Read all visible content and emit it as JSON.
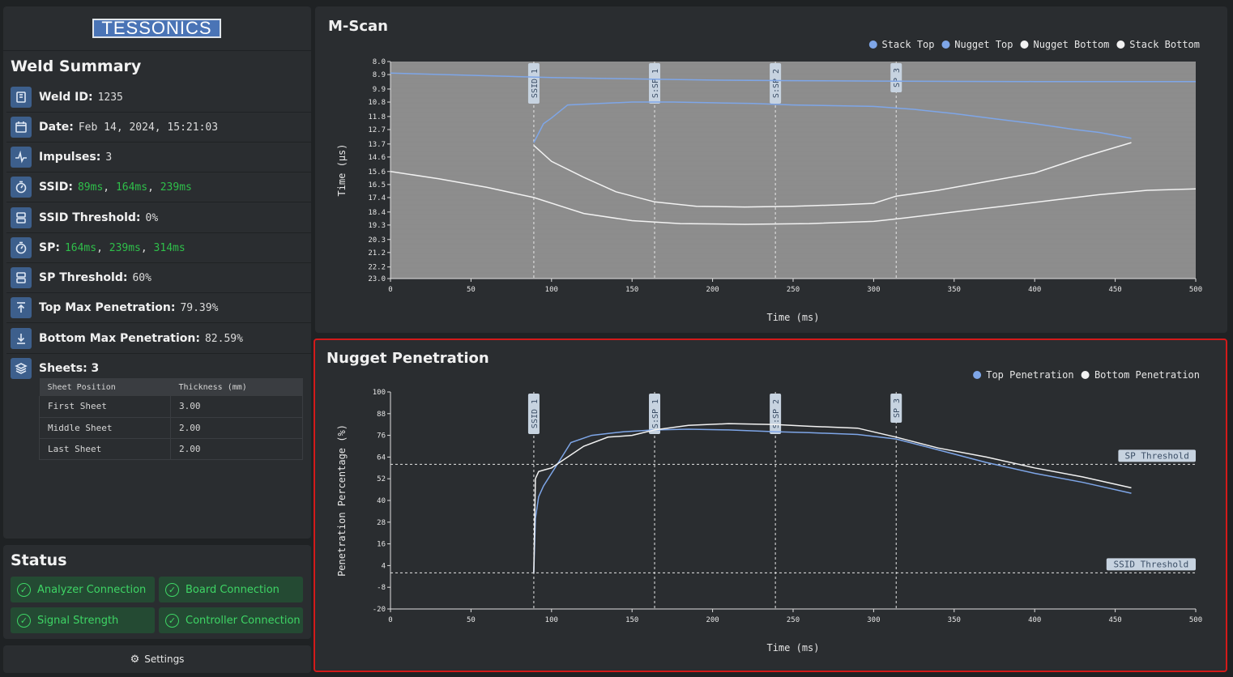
{
  "app": {
    "logo_text": "TESSONICS"
  },
  "sidebar": {
    "title": "Weld Summary",
    "rows": [
      {
        "icon": "id-card-icon",
        "label": "Weld ID:",
        "value": "1235"
      },
      {
        "icon": "calendar-icon",
        "label": "Date:",
        "value": "Feb 14, 2024, 15:21:03"
      },
      {
        "icon": "pulse-icon",
        "label": "Impulses:",
        "value": "3"
      },
      {
        "icon": "timer-icon",
        "label": "SSID:",
        "parts": [
          "89ms",
          "164ms",
          "239ms"
        ]
      },
      {
        "icon": "threshold-icon",
        "label": "SSID Threshold:",
        "value": "0%"
      },
      {
        "icon": "timer-icon",
        "label": "SP:",
        "parts": [
          "164ms",
          "239ms",
          "314ms"
        ]
      },
      {
        "icon": "threshold-icon",
        "label": "SP Threshold:",
        "value": "60%"
      },
      {
        "icon": "arrow-up-icon",
        "label": "Top Max Penetration:",
        "value": "79.39%"
      },
      {
        "icon": "arrow-down-icon",
        "label": "Bottom Max Penetration:",
        "value": "82.59%"
      },
      {
        "icon": "layers-icon",
        "label": "Sheets: 3",
        "value": ""
      }
    ],
    "sheets_table": {
      "headers": [
        "Sheet Position",
        "Thickness (mm)"
      ],
      "rows": [
        [
          "First Sheet",
          "3.00"
        ],
        [
          "Middle Sheet",
          "2.00"
        ],
        [
          "Last Sheet",
          "2.00"
        ]
      ]
    }
  },
  "status": {
    "title": "Status",
    "items": [
      "Analyzer Connection",
      "Board Connection",
      "Signal Strength",
      "Controller Connection"
    ],
    "settings_label": "Settings"
  },
  "chart_data": [
    {
      "type": "line",
      "title": "M-Scan",
      "xlabel": "Time (ms)",
      "ylabel": "Time (µs)",
      "xlim": [
        0,
        500
      ],
      "ylim": [
        8.0,
        23.0
      ],
      "y_inverted": true,
      "xticks": [
        "0",
        "50",
        "100",
        "150",
        "200",
        "250",
        "300",
        "350",
        "400",
        "450",
        "500"
      ],
      "yticks": [
        "8.0",
        "8.9",
        "9.9",
        "10.8",
        "11.8",
        "12.7",
        "13.7",
        "14.6",
        "15.6",
        "16.5",
        "17.4",
        "18.4",
        "19.3",
        "20.3",
        "21.2",
        "22.2",
        "23.0"
      ],
      "legend": [
        "Stack Top",
        "Nugget Top",
        "Nugget Bottom",
        "Stack Bottom"
      ],
      "legend_position": "top-right",
      "markers": [
        {
          "label": "SSID 1",
          "x": 89
        },
        {
          "label": "S:SP 1",
          "x": 164
        },
        {
          "label": "S:SP 2",
          "x": 239
        },
        {
          "label": "SP 3",
          "x": 314
        }
      ],
      "series": [
        {
          "name": "Stack Top",
          "color": "#7ea6e8",
          "x": [
            0,
            50,
            100,
            150,
            200,
            250,
            300,
            350,
            400,
            450,
            500
          ],
          "y": [
            8.8,
            8.95,
            9.1,
            9.2,
            9.28,
            9.32,
            9.35,
            9.37,
            9.38,
            9.38,
            9.38
          ]
        },
        {
          "name": "Nugget Top",
          "color": "#7ea6e8",
          "x": [
            89,
            95,
            100,
            110,
            130,
            150,
            175,
            200,
            225,
            250,
            275,
            300,
            325,
            350,
            375,
            400,
            425,
            440,
            460
          ],
          "y": [
            13.6,
            12.3,
            11.9,
            11.0,
            10.9,
            10.8,
            10.8,
            10.85,
            10.9,
            11.0,
            11.05,
            11.1,
            11.3,
            11.6,
            11.95,
            12.3,
            12.7,
            12.9,
            13.3
          ]
        },
        {
          "name": "Nugget Bottom",
          "color": "#f2f2f2",
          "x": [
            89,
            100,
            120,
            140,
            164,
            190,
            220,
            250,
            280,
            300,
            314,
            340,
            370,
            400,
            430,
            460
          ],
          "y": [
            13.8,
            14.9,
            16.0,
            17.0,
            17.7,
            18.0,
            18.05,
            18.0,
            17.9,
            17.8,
            17.3,
            16.9,
            16.3,
            15.7,
            14.6,
            13.6
          ]
        },
        {
          "name": "Stack Bottom",
          "color": "#f2f2f2",
          "x": [
            0,
            30,
            60,
            89,
            120,
            150,
            180,
            220,
            260,
            300,
            320,
            350,
            380,
            410,
            440,
            470,
            500
          ],
          "y": [
            15.6,
            16.1,
            16.7,
            17.4,
            18.5,
            19.0,
            19.2,
            19.25,
            19.2,
            19.05,
            18.8,
            18.4,
            18.0,
            17.6,
            17.2,
            16.9,
            16.8
          ]
        }
      ]
    },
    {
      "type": "line",
      "title": "Nugget Penetration",
      "xlabel": "Time (ms)",
      "ylabel": "Penetration Percentage (%)",
      "xlim": [
        0,
        500
      ],
      "ylim": [
        -20,
        100
      ],
      "xticks": [
        "0",
        "50",
        "100",
        "150",
        "200",
        "250",
        "300",
        "350",
        "400",
        "450",
        "500"
      ],
      "yticks": [
        "100",
        "88",
        "76",
        "64",
        "52",
        "40",
        "28",
        "16",
        "4",
        "-8",
        "-20"
      ],
      "legend": [
        "Top Penetration",
        "Bottom Penetration"
      ],
      "legend_position": "top-right",
      "markers": [
        {
          "label": "SSID 1",
          "x": 89
        },
        {
          "label": "S:SP 1",
          "x": 164
        },
        {
          "label": "S:SP 2",
          "x": 239
        },
        {
          "label": "SP 3",
          "x": 314
        }
      ],
      "thresholds": [
        {
          "label": "SP Threshold",
          "y": 60
        },
        {
          "label": "SSID Threshold",
          "y": 0
        }
      ],
      "series": [
        {
          "name": "Top Penetration",
          "color": "#7ea6e8",
          "x": [
            89,
            90,
            92,
            95,
            100,
            105,
            112,
            125,
            145,
            164,
            185,
            210,
            239,
            260,
            290,
            314,
            340,
            370,
            400,
            430,
            460
          ],
          "y": [
            0,
            30,
            42,
            48,
            55,
            62,
            72,
            76,
            78,
            79,
            79.4,
            79,
            78,
            77.5,
            76.5,
            74,
            68,
            61,
            55,
            50,
            44
          ]
        },
        {
          "name": "Bottom Penetration",
          "color": "#f2f2f2",
          "x": [
            89,
            90,
            92,
            96,
            100,
            110,
            120,
            135,
            150,
            164,
            185,
            210,
            239,
            260,
            290,
            314,
            340,
            370,
            400,
            430,
            460
          ],
          "y": [
            0,
            52,
            56,
            57,
            58,
            64,
            70,
            75,
            76,
            79,
            81.5,
            82.5,
            82,
            81,
            80,
            75,
            69,
            64,
            58,
            53,
            47
          ]
        }
      ]
    }
  ]
}
